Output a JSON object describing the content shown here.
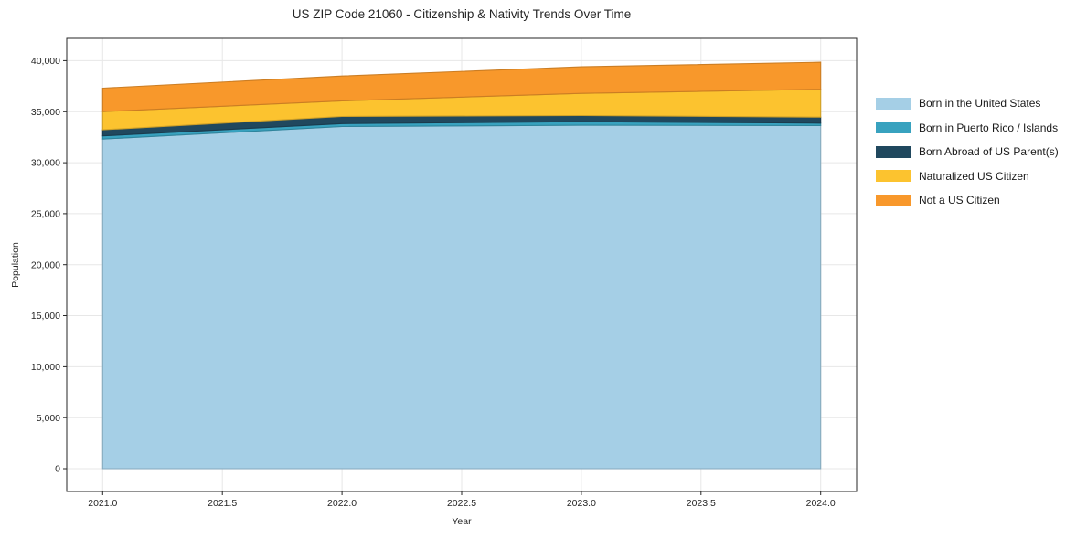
{
  "title": "US ZIP Code 21060 - Citizenship & Nativity Trends Over Time",
  "chart_data": {
    "type": "area",
    "stacked": true,
    "title": "US ZIP Code 21060 - Citizenship & Nativity Trends Over Time",
    "xlabel": "Year",
    "ylabel": "Population",
    "x": [
      2021,
      2022,
      2023,
      2024
    ],
    "series": [
      {
        "name": "Born in the United States",
        "color": "#a5cfe6",
        "values": [
          32320,
          33550,
          33670,
          33640
        ]
      },
      {
        "name": "Born in Puerto Rico / Islands",
        "color": "#38a2bf",
        "values": [
          310,
          280,
          350,
          240
        ]
      },
      {
        "name": "Born Abroad of US Parent(s)",
        "color": "#20485e",
        "values": [
          590,
          700,
          600,
          590
        ]
      },
      {
        "name": "Naturalized US Citizen",
        "color": "#fcc32f",
        "values": [
          1790,
          1530,
          2180,
          2730
        ]
      },
      {
        "name": "Not a US Citizen",
        "color": "#f8982b",
        "values": [
          2300,
          2440,
          2600,
          2650
        ]
      }
    ],
    "totals": [
      37310,
      38500,
      39400,
      39850
    ],
    "xlim": [
      2020.85,
      2024.15
    ],
    "ylim": [
      -2240,
      42190
    ],
    "x_ticks": [
      {
        "value": 2021.0,
        "label": "2021.0"
      },
      {
        "value": 2021.5,
        "label": "2021.5"
      },
      {
        "value": 2022.0,
        "label": "2022.0"
      },
      {
        "value": 2022.5,
        "label": "2022.5"
      },
      {
        "value": 2023.0,
        "label": "2023.0"
      },
      {
        "value": 2023.5,
        "label": "2023.5"
      },
      {
        "value": 2024.0,
        "label": "2024.0"
      }
    ],
    "y_ticks": [
      {
        "value": 0,
        "label": "0"
      },
      {
        "value": 5000,
        "label": "5,000"
      },
      {
        "value": 10000,
        "label": "10,000"
      },
      {
        "value": 15000,
        "label": "15,000"
      },
      {
        "value": 20000,
        "label": "20,000"
      },
      {
        "value": 25000,
        "label": "25,000"
      },
      {
        "value": 30000,
        "label": "30,000"
      },
      {
        "value": 35000,
        "label": "35,000"
      },
      {
        "value": 40000,
        "label": "40,000"
      }
    ],
    "grid": true,
    "legend_position": "right"
  }
}
